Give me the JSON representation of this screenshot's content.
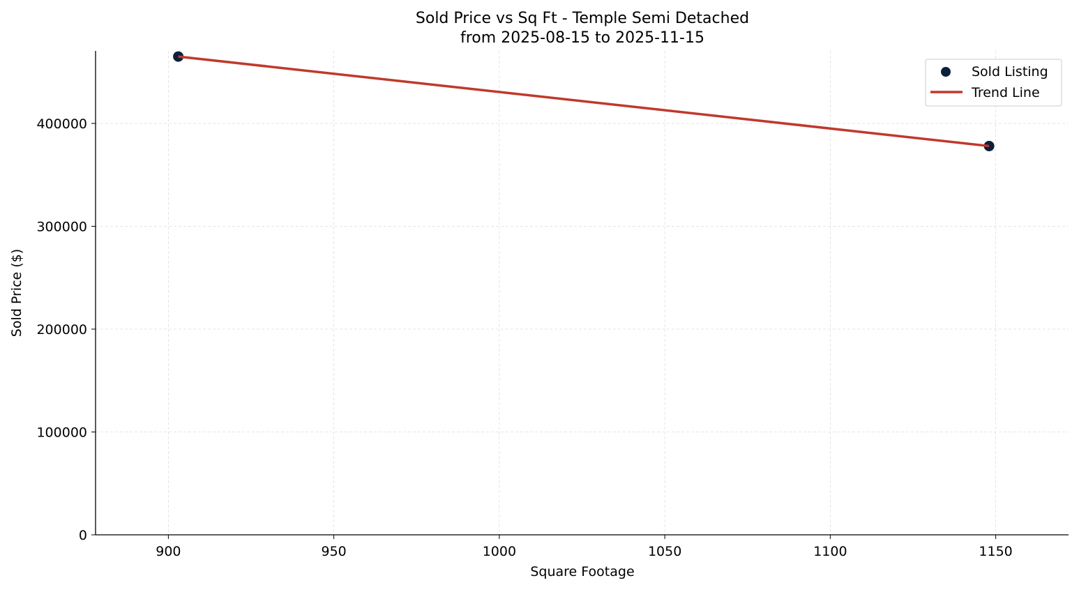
{
  "chart_data": {
    "type": "scatter",
    "title": "Sold Price vs Sq Ft - Temple Semi Detached",
    "subtitle": "from 2025-08-15 to 2025-11-15",
    "xlabel": "Square Footage",
    "ylabel": "Sold Price ($)",
    "xlim": [
      878,
      1172
    ],
    "ylim": [
      0,
      470500
    ],
    "xticks": [
      900,
      950,
      1000,
      1050,
      1100,
      1150
    ],
    "yticks": [
      0,
      100000,
      200000,
      300000,
      400000
    ],
    "grid": true,
    "legend_position": "top-right",
    "series": [
      {
        "name": "Sold Listing",
        "kind": "scatter",
        "color": "#0d1f3c",
        "x": [
          903,
          1148
        ],
        "y": [
          465000,
          378000
        ]
      },
      {
        "name": "Trend Line",
        "kind": "line",
        "color": "#c0392b",
        "x": [
          903,
          1148
        ],
        "y": [
          465000,
          378000
        ]
      }
    ]
  }
}
